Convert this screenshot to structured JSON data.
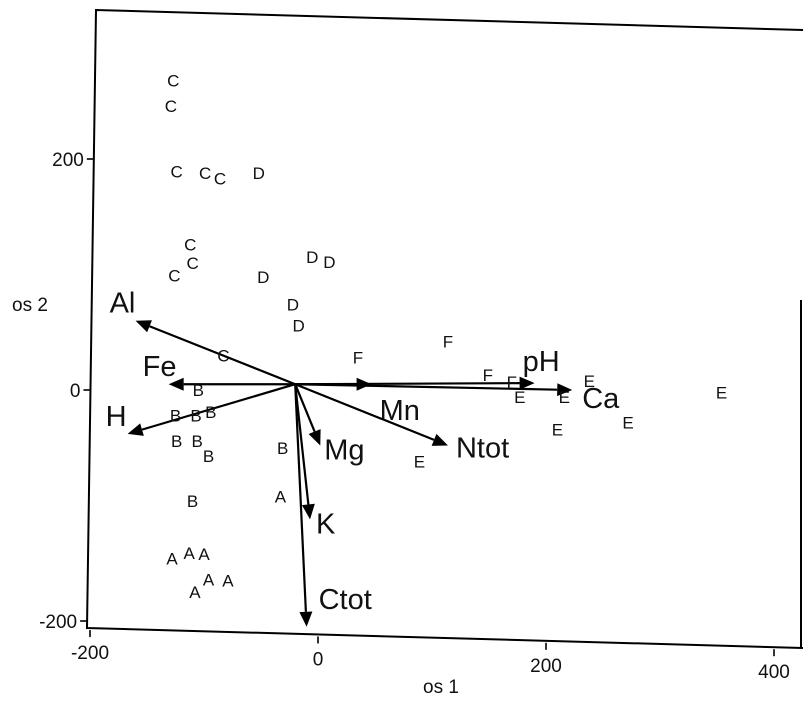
{
  "chart_data": {
    "type": "scatter",
    "title": "",
    "xlabel": "os 1",
    "ylabel": "os 2",
    "xlim": [
      -205,
      420
    ],
    "ylim": [
      -205,
      325
    ],
    "xticks": [
      -200,
      0,
      200,
      400
    ],
    "yticks": [
      -200,
      0,
      200
    ],
    "grid": false,
    "legend": "none",
    "origin": [
      -20,
      5
    ],
    "points": [
      {
        "label": "C",
        "x": -127,
        "y": 268
      },
      {
        "label": "C",
        "x": -129,
        "y": 246
      },
      {
        "label": "C",
        "x": -124,
        "y": 189
      },
      {
        "label": "C",
        "x": -99,
        "y": 188
      },
      {
        "label": "C",
        "x": -86,
        "y": 183
      },
      {
        "label": "D",
        "x": -52,
        "y": 188
      },
      {
        "label": "C",
        "x": -112,
        "y": 126
      },
      {
        "label": "C",
        "x": -110,
        "y": 110
      },
      {
        "label": "C",
        "x": -126,
        "y": 99
      },
      {
        "label": "D",
        "x": -48,
        "y": 98
      },
      {
        "label": "D",
        "x": -5,
        "y": 115
      },
      {
        "label": "D",
        "x": 10,
        "y": 111
      },
      {
        "label": "D",
        "x": -22,
        "y": 74
      },
      {
        "label": "D",
        "x": -17,
        "y": 56
      },
      {
        "label": "C",
        "x": -83,
        "y": 30
      },
      {
        "label": "F",
        "x": 35,
        "y": 28
      },
      {
        "label": "F",
        "x": 114,
        "y": 42
      },
      {
        "label": "F",
        "x": 149,
        "y": 13
      },
      {
        "label": "F",
        "x": 170,
        "y": 7
      },
      {
        "label": "B",
        "x": -105,
        "y": 0
      },
      {
        "label": "B",
        "x": -125,
        "y": -22
      },
      {
        "label": "B",
        "x": -107,
        "y": -22
      },
      {
        "label": "B",
        "x": -94,
        "y": -19
      },
      {
        "label": "B",
        "x": -124,
        "y": -44
      },
      {
        "label": "B",
        "x": -106,
        "y": -44
      },
      {
        "label": "B",
        "x": -96,
        "y": -57
      },
      {
        "label": "B",
        "x": -31,
        "y": -50
      },
      {
        "label": "B",
        "x": -110,
        "y": -96
      },
      {
        "label": "A",
        "x": -33,
        "y": -92
      },
      {
        "label": "A",
        "x": -128,
        "y": -146
      },
      {
        "label": "A",
        "x": -113,
        "y": -141
      },
      {
        "label": "A",
        "x": -100,
        "y": -142
      },
      {
        "label": "A",
        "x": -96,
        "y": -164
      },
      {
        "label": "A",
        "x": -108,
        "y": -175
      },
      {
        "label": "A",
        "x": -79,
        "y": -165
      },
      {
        "label": "E",
        "x": 177,
        "y": -6
      },
      {
        "label": "E",
        "x": 216,
        "y": -6
      },
      {
        "label": "E",
        "x": 238,
        "y": 8
      },
      {
        "label": "E",
        "x": 210,
        "y": -34
      },
      {
        "label": "E",
        "x": 272,
        "y": -28
      },
      {
        "label": "E",
        "x": 354,
        "y": -2
      },
      {
        "label": "E",
        "x": 89,
        "y": -62
      }
    ],
    "vectors": [
      {
        "name": "Al",
        "x": -160,
        "y": 60
      },
      {
        "name": "Fe",
        "x": -131,
        "y": 5
      },
      {
        "name": "H",
        "x": -167,
        "y": -38
      },
      {
        "name": "Mg",
        "x": 2,
        "y": -48
      },
      {
        "name": "K",
        "x": -7,
        "y": -112
      },
      {
        "name": "Ctot",
        "x": -10,
        "y": -205
      },
      {
        "name": "Mn",
        "x": 47,
        "y": 5
      },
      {
        "name": "Ntot",
        "x": 114,
        "y": -48
      },
      {
        "name": "pH",
        "x": 190,
        "y": 6
      },
      {
        "name": "Ca",
        "x": 223,
        "y": 0
      }
    ]
  }
}
